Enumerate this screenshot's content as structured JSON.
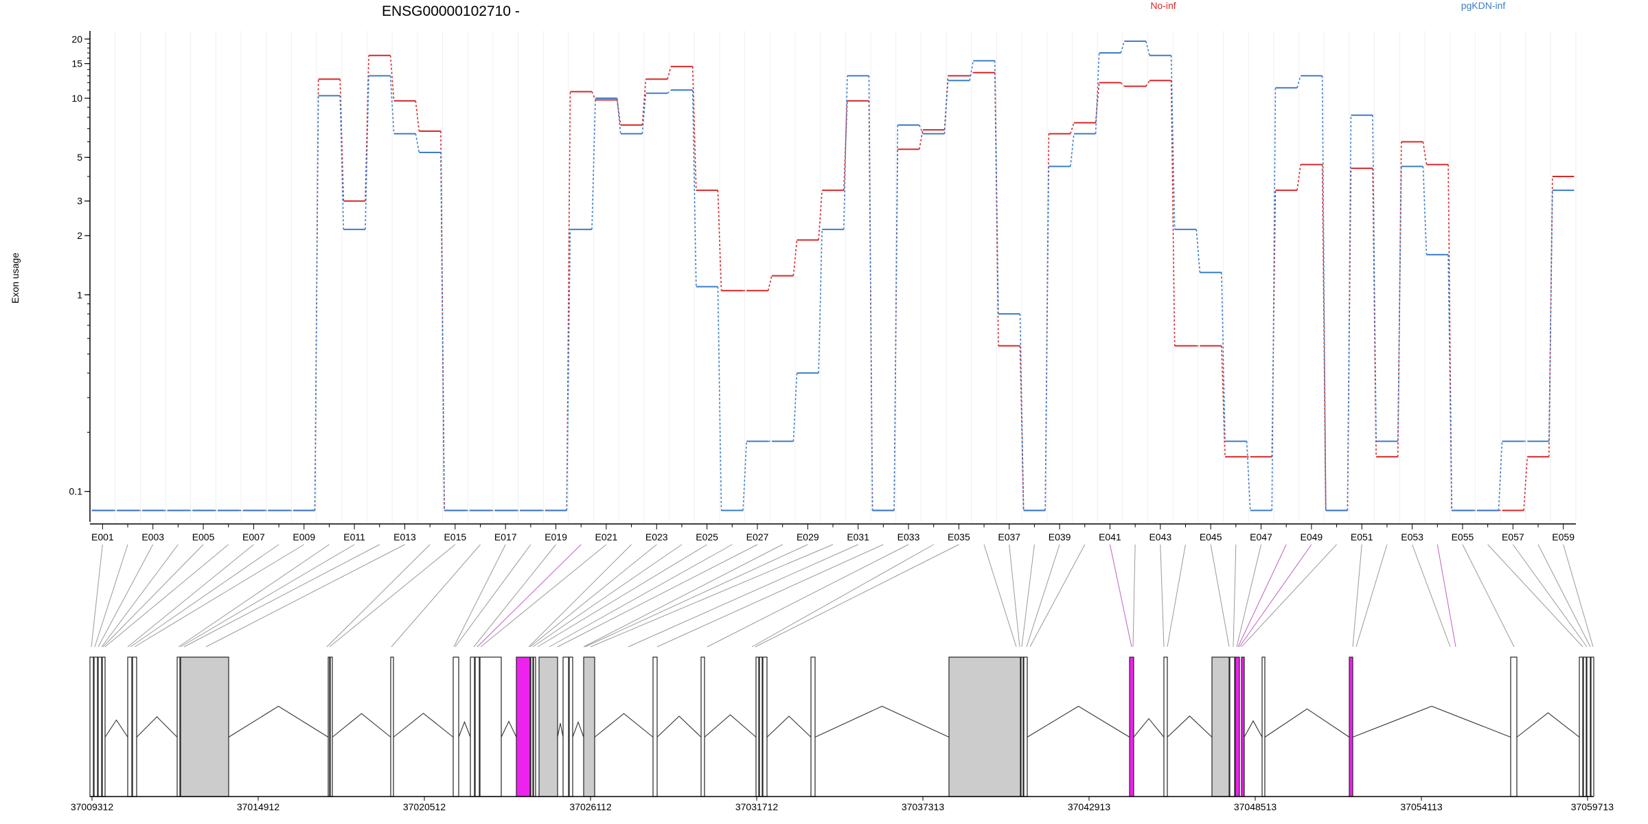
{
  "colors": {
    "no_inf": "#d62728",
    "pgkdn_inf": "#3a7dc9",
    "exon_fill": "#cccccc",
    "highlight": "#ee22ee",
    "connector": "#999999"
  },
  "chart_data": {
    "type": "line",
    "title": "ENSG00000102710 -",
    "ylabel": "Exon usage",
    "yscale": "log",
    "ylim": [
      0.07,
      22
    ],
    "yticks": [
      0.1,
      1,
      2,
      3,
      5,
      10,
      15,
      20
    ],
    "ytick_labels": [
      "0.1",
      "1",
      "2",
      "3",
      "5",
      "10",
      "15",
      "20"
    ],
    "grid": true,
    "legend_position": "top",
    "categories": [
      "E001",
      "E002",
      "E003",
      "E004",
      "E005",
      "E006",
      "E007",
      "E008",
      "E009",
      "E010",
      "E011",
      "E012",
      "E013",
      "E014",
      "E015",
      "E016",
      "E017",
      "E018",
      "E019",
      "E020",
      "E021",
      "E022",
      "E023",
      "E024",
      "E025",
      "E026",
      "E027",
      "E028",
      "E029",
      "E030",
      "E031",
      "E032",
      "E033",
      "E034",
      "E035",
      "E036",
      "E037",
      "E038",
      "E039",
      "E040",
      "E041",
      "E042",
      "E043",
      "E044",
      "E045",
      "E046",
      "E047",
      "E048",
      "E049",
      "E050",
      "E051",
      "E052",
      "E053",
      "E054",
      "E055",
      "E056",
      "E057",
      "E058",
      "E059"
    ],
    "xtick_labels": [
      "E001",
      "E003",
      "E005",
      "E007",
      "E009",
      "E011",
      "E013",
      "E015",
      "E017",
      "E019",
      "E021",
      "E023",
      "E025",
      "E027",
      "E029",
      "E031",
      "E033",
      "E035",
      "E037",
      "E039",
      "E041",
      "E043",
      "E045",
      "E047",
      "E049",
      "E051",
      "E053",
      "E055",
      "E057",
      "E059"
    ],
    "series": [
      {
        "name": "No-inf",
        "color": "#d62728",
        "values": [
          0.08,
          0.08,
          0.08,
          0.08,
          0.08,
          0.08,
          0.08,
          0.08,
          0.08,
          12.5,
          3.0,
          16.5,
          9.7,
          6.8,
          0.08,
          0.08,
          0.08,
          0.08,
          0.08,
          10.8,
          9.8,
          7.3,
          12.5,
          14.5,
          3.4,
          1.05,
          1.05,
          1.25,
          1.9,
          3.4,
          9.7,
          0.08,
          5.5,
          6.9,
          13.0,
          13.5,
          0.55,
          0.08,
          6.6,
          7.5,
          12.0,
          11.5,
          12.3,
          0.55,
          0.55,
          0.15,
          0.15,
          3.4,
          4.6,
          0.08,
          4.4,
          0.15,
          6.0,
          4.6,
          0.08,
          0.08,
          0.08,
          0.15,
          4.0
        ]
      },
      {
        "name": "pgKDN-inf",
        "color": "#3a7dc9",
        "values": [
          0.08,
          0.08,
          0.08,
          0.08,
          0.08,
          0.08,
          0.08,
          0.08,
          0.08,
          10.3,
          2.15,
          13.0,
          6.6,
          5.3,
          0.08,
          0.08,
          0.08,
          0.08,
          0.08,
          2.15,
          10.0,
          6.6,
          10.6,
          11.0,
          1.1,
          0.08,
          0.18,
          0.18,
          0.4,
          2.15,
          13.0,
          0.08,
          7.3,
          6.6,
          12.3,
          15.5,
          0.8,
          0.08,
          4.5,
          6.6,
          17.0,
          19.5,
          16.5,
          2.15,
          1.3,
          0.18,
          0.08,
          11.3,
          13.0,
          0.08,
          8.2,
          0.18,
          4.5,
          1.6,
          0.08,
          0.08,
          0.18,
          0.18,
          3.4
        ]
      }
    ]
  },
  "gene_model": {
    "coordinate_labels": [
      "37009312",
      "37014912",
      "37020512",
      "37026112",
      "37031712",
      "37037313",
      "37042913",
      "37048513",
      "37054113",
      "37059713"
    ]
  }
}
